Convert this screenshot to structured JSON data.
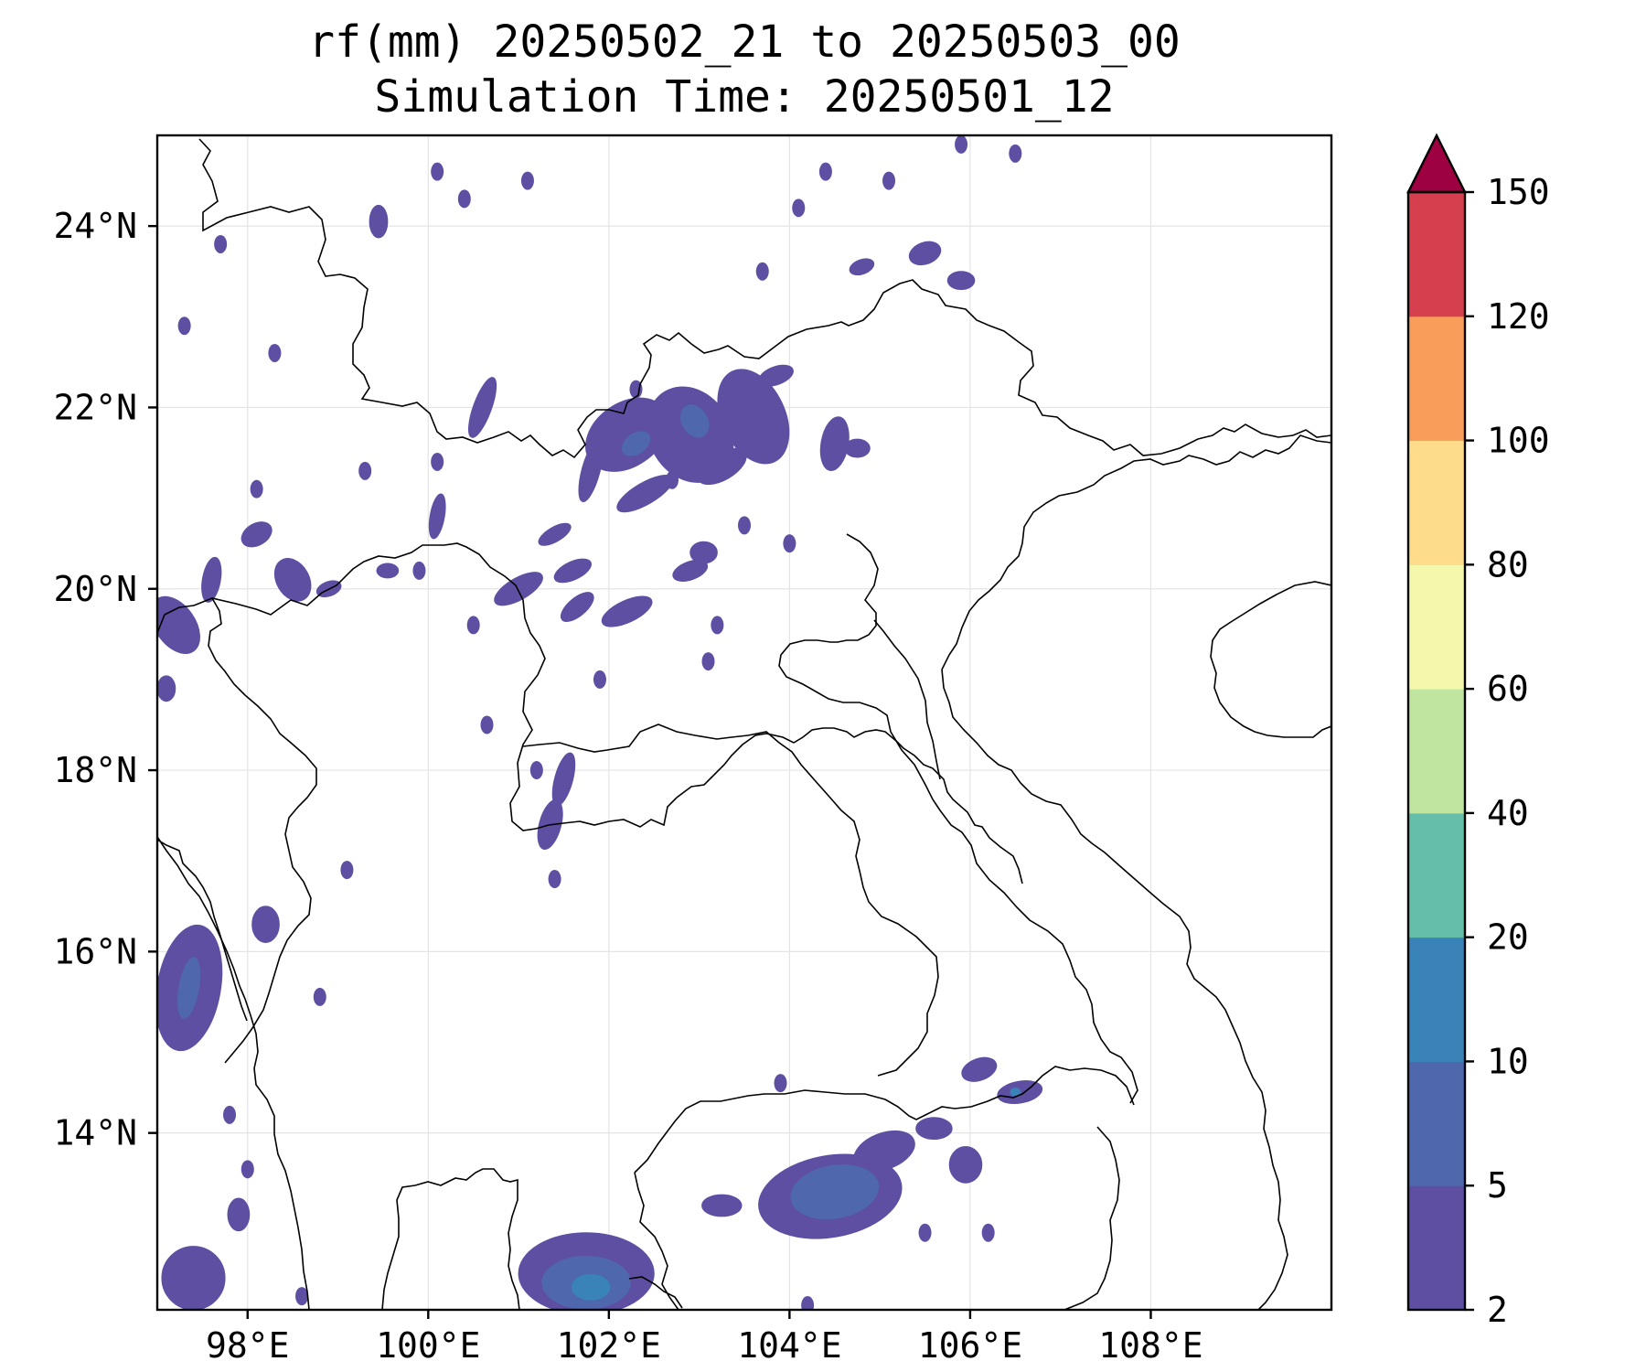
{
  "title": {
    "line1": "rf(mm) 20250502_21 to 20250503_00",
    "line2": "Simulation Time: 20250501_12"
  },
  "map": {
    "lon_range": [
      97.0,
      110.0
    ],
    "lat_range": [
      12.05,
      25.0
    ],
    "lon_ticks": [
      {
        "value": 98,
        "label": "98°E"
      },
      {
        "value": 100,
        "label": "100°E"
      },
      {
        "value": 102,
        "label": "102°E"
      },
      {
        "value": 104,
        "label": "104°E"
      },
      {
        "value": 106,
        "label": "106°E"
      },
      {
        "value": 108,
        "label": "108°E"
      }
    ],
    "lat_ticks": [
      {
        "value": 24,
        "label": "24°N"
      },
      {
        "value": 22,
        "label": "22°N"
      },
      {
        "value": 20,
        "label": "20°N"
      },
      {
        "value": 18,
        "label": "18°N"
      },
      {
        "value": 16,
        "label": "16°N"
      },
      {
        "value": 14,
        "label": "14°N"
      }
    ],
    "gridlines": true
  },
  "colorbar": {
    "extend": "max",
    "levels": [
      {
        "value": 2,
        "label": "2"
      },
      {
        "value": 5,
        "label": "5"
      },
      {
        "value": 10,
        "label": "10"
      },
      {
        "value": 20,
        "label": "20"
      },
      {
        "value": 40,
        "label": "40"
      },
      {
        "value": 60,
        "label": "60"
      },
      {
        "value": 80,
        "label": "80"
      },
      {
        "value": 100,
        "label": "100"
      },
      {
        "value": 120,
        "label": "120"
      },
      {
        "value": 150,
        "label": "150"
      }
    ],
    "colors": [
      "#5e4fa2",
      "#4f67ad",
      "#3a83b9",
      "#65bea7",
      "#bfe5a0",
      "#f3f8ad",
      "#fddc8c",
      "#f99d5a",
      "#d6404e"
    ],
    "extend_color": "#9e0142"
  },
  "rain_areas": [
    {
      "id": "laos-north-1",
      "level": 1,
      "lon": 102.2,
      "lat": 21.7,
      "rx": 0.5,
      "ry": 0.35,
      "rot": -35
    },
    {
      "id": "laos-north-2",
      "level": 2,
      "lon": 102.3,
      "lat": 21.6,
      "rx": 0.18,
      "ry": 0.12,
      "rot": -35
    },
    {
      "id": "laos-north-3",
      "level": 1,
      "lon": 102.9,
      "lat": 21.7,
      "rx": 0.45,
      "ry": 0.55,
      "rot": -30
    },
    {
      "id": "laos-north-4",
      "level": 2,
      "lon": 102.95,
      "lat": 21.85,
      "rx": 0.15,
      "ry": 0.2,
      "rot": -30
    },
    {
      "id": "laos-north-5",
      "level": 1,
      "lon": 103.6,
      "lat": 21.9,
      "rx": 0.35,
      "ry": 0.55,
      "rot": -25
    },
    {
      "id": "laos-north-6",
      "level": 1,
      "lon": 102.4,
      "lat": 21.05,
      "rx": 0.35,
      "ry": 0.12,
      "rot": -30
    },
    {
      "id": "laos-north-7",
      "level": 1,
      "lon": 103.25,
      "lat": 21.35,
      "rx": 0.3,
      "ry": 0.15,
      "rot": -30
    },
    {
      "id": "laos-north-8",
      "level": 1,
      "lon": 102.9,
      "lat": 21.45,
      "rx": 0.25,
      "ry": 0.12,
      "rot": -30
    },
    {
      "id": "laos-north-9",
      "level": 1,
      "lon": 101.0,
      "lat": 20.0,
      "rx": 0.3,
      "ry": 0.12,
      "rot": -30
    },
    {
      "id": "laos-north-10",
      "level": 1,
      "lon": 101.6,
      "lat": 20.2,
      "rx": 0.22,
      "ry": 0.1,
      "rot": -25
    },
    {
      "id": "laos-north-11",
      "level": 1,
      "lon": 102.2,
      "lat": 19.75,
      "rx": 0.3,
      "ry": 0.12,
      "rot": -25
    },
    {
      "id": "laos-north-12",
      "level": 1,
      "lon": 101.65,
      "lat": 19.8,
      "rx": 0.22,
      "ry": 0.1,
      "rot": -40
    },
    {
      "id": "laos-north-13",
      "level": 1,
      "lon": 102.9,
      "lat": 20.2,
      "rx": 0.2,
      "ry": 0.1,
      "rot": -20
    },
    {
      "id": "laos-north-14",
      "level": 1,
      "lon": 101.4,
      "lat": 20.6,
      "rx": 0.2,
      "ry": 0.08,
      "rot": -30
    },
    {
      "id": "laos-north-15",
      "level": 1,
      "lon": 101.8,
      "lat": 21.3,
      "rx": 0.1,
      "ry": 0.35,
      "rot": 15
    },
    {
      "id": "laos-north-16",
      "level": 1,
      "lon": 103.05,
      "lat": 20.4,
      "rx": 0.15,
      "ry": 0.12,
      "rot": 0
    },
    {
      "id": "myanmar-1",
      "level": 1,
      "lon": 100.6,
      "lat": 22.0,
      "rx": 0.1,
      "ry": 0.35,
      "rot": 20
    },
    {
      "id": "myanmar-2",
      "level": 1,
      "lon": 97.6,
      "lat": 20.1,
      "rx": 0.1,
      "ry": 0.25,
      "rot": 10
    },
    {
      "id": "myanmar-3",
      "level": 1,
      "lon": 98.1,
      "lat": 20.6,
      "rx": 0.18,
      "ry": 0.12,
      "rot": -30
    },
    {
      "id": "myanmar-4",
      "level": 1,
      "lon": 98.5,
      "lat": 20.1,
      "rx": 0.18,
      "ry": 0.25,
      "rot": -30
    },
    {
      "id": "myanmar-5",
      "level": 1,
      "lon": 97.2,
      "lat": 19.6,
      "rx": 0.22,
      "ry": 0.35,
      "rot": -35
    },
    {
      "id": "myanmar-6",
      "level": 1,
      "lon": 98.9,
      "lat": 20.0,
      "rx": 0.14,
      "ry": 0.08,
      "rot": -20
    },
    {
      "id": "myanmar-7",
      "level": 1,
      "lon": 99.55,
      "lat": 20.2,
      "rx": 0.12,
      "ry": 0.08,
      "rot": 0
    },
    {
      "id": "myanmar-8",
      "level": 1,
      "lon": 97.1,
      "lat": 18.9,
      "rx": 0.1,
      "ry": 0.14,
      "rot": 0
    },
    {
      "id": "myanmar-9",
      "level": 1,
      "lon": 99.45,
      "lat": 24.05,
      "rx": 0.1,
      "ry": 0.18,
      "rot": 0
    },
    {
      "id": "myanmar-10",
      "level": 1,
      "lon": 100.1,
      "lat": 20.8,
      "rx": 0.08,
      "ry": 0.25,
      "rot": 10
    },
    {
      "id": "west-coast-1",
      "level": 1,
      "lon": 97.35,
      "lat": 15.6,
      "rx": 0.35,
      "ry": 0.7,
      "rot": 10
    },
    {
      "id": "west-coast-2",
      "level": 2,
      "lon": 97.35,
      "lat": 15.6,
      "rx": 0.12,
      "ry": 0.35,
      "rot": 10
    },
    {
      "id": "west-coast-3",
      "level": 1,
      "lon": 98.2,
      "lat": 16.3,
      "rx": 0.15,
      "ry": 0.2,
      "rot": 0
    },
    {
      "id": "west-coast-4",
      "level": 1,
      "lon": 97.4,
      "lat": 12.4,
      "rx": 0.35,
      "ry": 0.35,
      "rot": 0
    },
    {
      "id": "west-coast-5",
      "level": 1,
      "lon": 97.9,
      "lat": 13.1,
      "rx": 0.12,
      "ry": 0.18,
      "rot": 0
    },
    {
      "id": "gulf-1",
      "level": 1,
      "lon": 101.75,
      "lat": 12.45,
      "rx": 0.75,
      "ry": 0.45,
      "rot": 0
    },
    {
      "id": "gulf-2",
      "level": 2,
      "lon": 101.75,
      "lat": 12.35,
      "rx": 0.5,
      "ry": 0.3,
      "rot": 0
    },
    {
      "id": "gulf-3",
      "level": 3,
      "lon": 101.8,
      "lat": 12.3,
      "rx": 0.22,
      "ry": 0.15,
      "rot": 0
    },
    {
      "id": "cambodia-1",
      "level": 1,
      "lon": 104.45,
      "lat": 13.3,
      "rx": 0.8,
      "ry": 0.45,
      "rot": -10
    },
    {
      "id": "cambodia-2",
      "level": 2,
      "lon": 104.5,
      "lat": 13.35,
      "rx": 0.5,
      "ry": 0.3,
      "rot": -10
    },
    {
      "id": "cambodia-3",
      "level": 1,
      "lon": 105.05,
      "lat": 13.8,
      "rx": 0.35,
      "ry": 0.2,
      "rot": -20
    },
    {
      "id": "cambodia-4",
      "level": 1,
      "lon": 103.25,
      "lat": 13.2,
      "rx": 0.22,
      "ry": 0.12,
      "rot": 0
    },
    {
      "id": "cambodia-5",
      "level": 1,
      "lon": 105.95,
      "lat": 13.65,
      "rx": 0.18,
      "ry": 0.2,
      "rot": 0
    },
    {
      "id": "laos-south-1",
      "level": 1,
      "lon": 106.55,
      "lat": 14.45,
      "rx": 0.25,
      "ry": 0.12,
      "rot": -10
    },
    {
      "id": "laos-south-2",
      "level": 3,
      "lon": 106.5,
      "lat": 14.45,
      "rx": 0.06,
      "ry": 0.05,
      "rot": 0
    },
    {
      "id": "laos-south-3",
      "level": 1,
      "lon": 106.1,
      "lat": 14.7,
      "rx": 0.2,
      "ry": 0.12,
      "rot": -20
    },
    {
      "id": "laos-south-4",
      "level": 1,
      "lon": 105.6,
      "lat": 14.05,
      "rx": 0.2,
      "ry": 0.12,
      "rot": 0
    },
    {
      "id": "central-laos-1",
      "level": 1,
      "lon": 101.5,
      "lat": 17.9,
      "rx": 0.1,
      "ry": 0.3,
      "rot": 15
    },
    {
      "id": "central-laos-2",
      "level": 1,
      "lon": 101.35,
      "lat": 17.4,
      "rx": 0.12,
      "ry": 0.28,
      "rot": 15
    },
    {
      "id": "china-1",
      "level": 1,
      "lon": 105.5,
      "lat": 23.7,
      "rx": 0.18,
      "ry": 0.12,
      "rot": -20
    },
    {
      "id": "china-2",
      "level": 1,
      "lon": 104.8,
      "lat": 23.55,
      "rx": 0.14,
      "ry": 0.08,
      "rot": -20
    },
    {
      "id": "china-3",
      "level": 1,
      "lon": 105.9,
      "lat": 23.4,
      "rx": 0.15,
      "ry": 0.1,
      "rot": 0
    },
    {
      "id": "china-4",
      "level": 1,
      "lon": 103.85,
      "lat": 22.35,
      "rx": 0.2,
      "ry": 0.1,
      "rot": -20
    },
    {
      "id": "china-5",
      "level": 1,
      "lon": 104.5,
      "lat": 21.6,
      "rx": 0.15,
      "ry": 0.3,
      "rot": 10
    },
    {
      "id": "china-6",
      "level": 1,
      "lon": 104.75,
      "lat": 21.55,
      "rx": 0.14,
      "ry": 0.1,
      "rot": 0
    }
  ],
  "rain_specks": [
    {
      "lon": 100.1,
      "lat": 24.6
    },
    {
      "lon": 100.4,
      "lat": 24.3
    },
    {
      "lon": 101.1,
      "lat": 24.5
    },
    {
      "lon": 104.1,
      "lat": 24.2
    },
    {
      "lon": 104.4,
      "lat": 24.6
    },
    {
      "lon": 105.1,
      "lat": 24.5
    },
    {
      "lon": 105.9,
      "lat": 24.9
    },
    {
      "lon": 106.5,
      "lat": 24.8
    },
    {
      "lon": 103.7,
      "lat": 23.5
    },
    {
      "lon": 97.3,
      "lat": 22.9
    },
    {
      "lon": 98.3,
      "lat": 22.6
    },
    {
      "lon": 97.7,
      "lat": 23.8
    },
    {
      "lon": 98.1,
      "lat": 21.1
    },
    {
      "lon": 99.3,
      "lat": 21.3
    },
    {
      "lon": 99.9,
      "lat": 20.2
    },
    {
      "lon": 100.5,
      "lat": 19.6
    },
    {
      "lon": 101.9,
      "lat": 19.0
    },
    {
      "lon": 103.1,
      "lat": 19.2
    },
    {
      "lon": 100.65,
      "lat": 18.5
    },
    {
      "lon": 101.2,
      "lat": 18.0
    },
    {
      "lon": 99.1,
      "lat": 16.9
    },
    {
      "lon": 98.8,
      "lat": 15.5
    },
    {
      "lon": 97.8,
      "lat": 14.2
    },
    {
      "lon": 98.0,
      "lat": 13.6
    },
    {
      "lon": 101.4,
      "lat": 16.8
    },
    {
      "lon": 105.5,
      "lat": 12.9
    },
    {
      "lon": 106.2,
      "lat": 12.9
    },
    {
      "lon": 103.9,
      "lat": 14.55
    },
    {
      "lon": 104.2,
      "lat": 12.1
    },
    {
      "lon": 98.6,
      "lat": 12.2
    },
    {
      "lon": 102.7,
      "lat": 21.2
    },
    {
      "lon": 103.5,
      "lat": 20.7
    },
    {
      "lon": 104.0,
      "lat": 20.5
    },
    {
      "lon": 103.2,
      "lat": 19.6
    },
    {
      "lon": 100.1,
      "lat": 21.4
    },
    {
      "lon": 102.3,
      "lat": 22.2
    }
  ]
}
